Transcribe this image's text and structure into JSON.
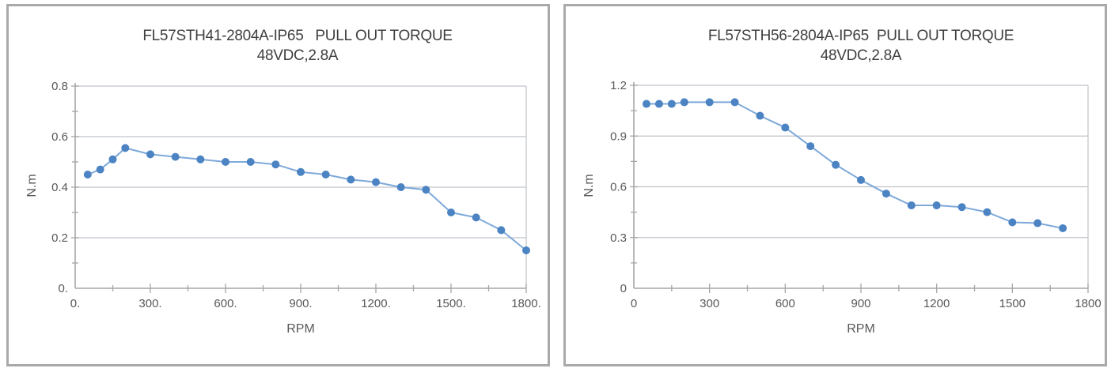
{
  "style": {
    "background": "#ffffff",
    "panel_border_color": "#a9a9a9",
    "grid_color": "#bfc3c9",
    "axis_color": "#a6a6a6",
    "title_color": "#3f3f3f",
    "tick_label_color": "#595959",
    "line_color": "#7ea9da",
    "marker_color": "#4b83c3"
  },
  "chart_data": [
    {
      "type": "line",
      "title_line1": "FL57STH41-2804A-IP65   PULL OUT TORQUE",
      "title_line2": "48VDC,2.8A",
      "xlabel": "RPM",
      "ylabel": "N.m",
      "xlim": [
        0,
        1800
      ],
      "ylim": [
        0,
        0.8
      ],
      "x_major": 300,
      "x_minor": 150,
      "y_major": 0.2,
      "y_minor": 0.1,
      "grid": "horizontal",
      "legend": "none",
      "x_tick_values": [
        0,
        300,
        600,
        900,
        1200,
        1500,
        1800
      ],
      "x_tick_labels": [
        "0.",
        "300.",
        "600.",
        "900.",
        "1200.",
        "1500.",
        "1800."
      ],
      "y_tick_values": [
        0,
        0.2,
        0.4,
        0.6,
        0.8
      ],
      "y_tick_labels": [
        "0.",
        "0.2",
        "0.4",
        "0.6",
        "0.8"
      ],
      "series": [
        {
          "name": "pull-out-torque",
          "x": [
            50,
            100,
            150,
            200,
            300,
            400,
            500,
            600,
            700,
            800,
            900,
            1000,
            1100,
            1200,
            1300,
            1400,
            1500,
            1600,
            1700,
            1800
          ],
          "y": [
            0.45,
            0.47,
            0.51,
            0.555,
            0.53,
            0.52,
            0.51,
            0.5,
            0.5,
            0.49,
            0.46,
            0.45,
            0.43,
            0.42,
            0.4,
            0.39,
            0.3,
            0.28,
            0.23,
            0.15
          ]
        }
      ]
    },
    {
      "type": "line",
      "title_line1": "FL57STH56-2804A-IP65  PULL OUT TORQUE",
      "title_line2": "48VDC,2.8A",
      "xlabel": "RPM",
      "ylabel": "N.m",
      "xlim": [
        0,
        1800
      ],
      "ylim": [
        0,
        1.2
      ],
      "x_major": 300,
      "x_minor": 150,
      "y_major": 0.3,
      "y_minor": 0.15,
      "grid": "horizontal",
      "legend": "none",
      "x_tick_values": [
        0,
        300,
        600,
        900,
        1200,
        1500,
        1800
      ],
      "x_tick_labels": [
        "0",
        "300",
        "600",
        "900",
        "1200",
        "1500",
        "1800"
      ],
      "y_tick_values": [
        0,
        0.3,
        0.6,
        0.9,
        1.2
      ],
      "y_tick_labels": [
        "0",
        "0.3",
        "0.6",
        "0.9",
        "1.2"
      ],
      "series": [
        {
          "name": "pull-out-torque",
          "x": [
            50,
            100,
            150,
            200,
            300,
            400,
            500,
            600,
            700,
            800,
            900,
            1000,
            1100,
            1200,
            1300,
            1400,
            1500,
            1600,
            1700
          ],
          "y": [
            1.09,
            1.09,
            1.09,
            1.1,
            1.1,
            1.1,
            1.02,
            0.95,
            0.84,
            0.73,
            0.64,
            0.56,
            0.49,
            0.49,
            0.48,
            0.45,
            0.39,
            0.385,
            0.355
          ]
        }
      ]
    }
  ]
}
